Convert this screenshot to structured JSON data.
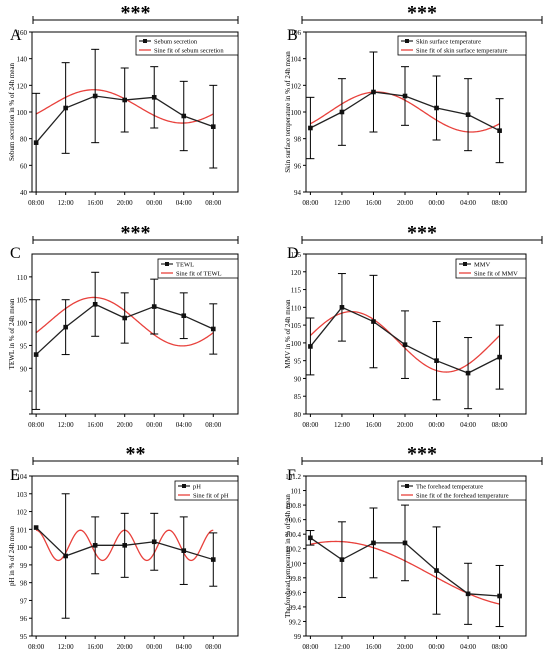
{
  "chart_data": [
    {
      "panel": "A",
      "type": "line",
      "significance": "***",
      "ylabel": "Sebum secretion in % of 24h mean",
      "x_ticks": [
        "08:00",
        "12:00",
        "16:00",
        "20:00",
        "00:00",
        "04:00",
        "08:00"
      ],
      "ylim": [
        40,
        160
      ],
      "y_ticks": [
        40,
        60,
        80,
        100,
        120,
        140,
        160
      ],
      "legend": [
        "Sebum secretion",
        "Sine fit of sebum secretion"
      ],
      "legend_position": "top-right",
      "series": [
        {
          "name": "Sebum secretion",
          "x": [
            0,
            1,
            2,
            3,
            4,
            5,
            6
          ],
          "values": [
            77,
            103,
            112,
            109,
            111,
            97,
            89
          ],
          "error": [
            37,
            34,
            35,
            24,
            23,
            26,
            31
          ]
        },
        {
          "name": "Sine fit of sebum secretion",
          "mesor": 104.2,
          "amplitude": 12.5,
          "acrophase": 1.95,
          "period": 6
        }
      ]
    },
    {
      "panel": "B",
      "type": "line",
      "significance": "***",
      "ylabel": "Skin surface temperature in % of 24h mean",
      "x_ticks": [
        "08:00",
        "12:00",
        "16:00",
        "20:00",
        "00:00",
        "04:00",
        "08:00"
      ],
      "ylim": [
        94,
        106
      ],
      "y_ticks": [
        94,
        96,
        98,
        100,
        102,
        104,
        106
      ],
      "legend": [
        "Skin surface temperature",
        "Sine fit of skin surface temperature"
      ],
      "legend_position": "top-right",
      "series": [
        {
          "name": "Skin surface temperature",
          "x": [
            0,
            1,
            2,
            3,
            4,
            5,
            6
          ],
          "values": [
            98.8,
            100,
            101.5,
            101.2,
            100.3,
            99.8,
            98.6
          ],
          "error": [
            2.3,
            2.5,
            3.0,
            2.2,
            2.4,
            2.7,
            2.4
          ]
        },
        {
          "name": "Sine fit of skin surface temperature",
          "mesor": 100.0,
          "amplitude": 1.5,
          "acrophase": 2.1,
          "period": 6
        }
      ]
    },
    {
      "panel": "C",
      "type": "line",
      "significance": "***",
      "ylabel": "TEWL in % of 24h mean",
      "x_ticks": [
        "08:00",
        "12:00",
        "16:00",
        "20:00",
        "00:00",
        "04:00",
        "08:00"
      ],
      "ylim": [
        80,
        115
      ],
      "y_ticks": [
        80,
        85,
        90,
        95,
        100,
        105,
        110
      ],
      "y_tick_labels": [
        "",
        "",
        "90",
        "95",
        "100",
        "105",
        "110"
      ],
      "legend": [
        "TEWL",
        "Sine fit of TEWL"
      ],
      "legend_position": "top-right",
      "series": [
        {
          "name": "TEWL",
          "x": [
            0,
            1,
            2,
            3,
            4,
            5,
            6
          ],
          "values": [
            93,
            99,
            104,
            101,
            103.5,
            101.5,
            98.6
          ],
          "error": [
            12,
            6,
            7,
            5.5,
            6,
            5,
            5.5
          ]
        },
        {
          "name": "Sine fit of TEWL",
          "mesor": 100.2,
          "amplitude": 5.3,
          "acrophase": 1.95,
          "period": 6
        }
      ]
    },
    {
      "panel": "D",
      "type": "line",
      "significance": "***",
      "ylabel": "MMV in % of 24h mean",
      "x_ticks": [
        "08:00",
        "12:00",
        "16:00",
        "20:00",
        "00:00",
        "04:00",
        "08:00"
      ],
      "ylim": [
        80,
        125
      ],
      "y_ticks": [
        80,
        85,
        90,
        95,
        100,
        105,
        110,
        115,
        120,
        125
      ],
      "legend": [
        "MMV",
        "Sine fit of MMV"
      ],
      "legend_position": "top-right",
      "series": [
        {
          "name": "MMV",
          "x": [
            0,
            1,
            2,
            3,
            4,
            5,
            6
          ],
          "values": [
            99,
            110,
            106,
            99.5,
            95,
            91.5,
            96
          ],
          "error": [
            8,
            9.5,
            13,
            9.5,
            11,
            10,
            9
          ]
        },
        {
          "name": "Sine fit of MMV",
          "mesor": 100.3,
          "amplitude": 8.5,
          "acrophase": 1.3,
          "period": 6
        }
      ]
    },
    {
      "panel": "E",
      "type": "line",
      "significance": "**",
      "ylabel": "pH in % of 24h mean",
      "x_ticks": [
        "08:00",
        "12:00",
        "16:00",
        "20:00",
        "00:00",
        "04:00",
        "08:00"
      ],
      "ylim": [
        95,
        104
      ],
      "y_ticks": [
        95,
        96,
        97,
        98,
        99,
        100,
        101,
        102,
        103,
        104
      ],
      "legend": [
        "pH",
        "Sine fit of pH"
      ],
      "legend_position": "top-right",
      "series": [
        {
          "name": "pH",
          "x": [
            0,
            1,
            2,
            3,
            4,
            5,
            6
          ],
          "values": [
            101.1,
            99.5,
            100.1,
            100.1,
            100.3,
            99.8,
            99.3
          ],
          "error": [
            0,
            3.5,
            1.6,
            1.8,
            1.6,
            1.9,
            1.5
          ]
        },
        {
          "name": "Sine fit of pH",
          "mesor": 100.1,
          "amplitude": 0.85,
          "acrophase": 0.0,
          "period": 1.5
        }
      ]
    },
    {
      "panel": "F",
      "type": "line",
      "significance": "***",
      "ylabel": "The forehead temperature in % of 24h mean",
      "x_ticks": [
        "08:00",
        "12:00",
        "16:00",
        "20:00",
        "00:00",
        "04:00",
        "08:00"
      ],
      "ylim": [
        99.0,
        101.2
      ],
      "y_ticks": [
        99.0,
        99.2,
        99.4,
        99.6,
        99.8,
        100.0,
        100.2,
        100.4,
        100.6,
        100.8,
        101.0,
        101.2
      ],
      "legend": [
        "The forehead temperature",
        "Sine fit of the forehead temperature"
      ],
      "legend_position": "top-right",
      "series": [
        {
          "name": "The forehead temperature",
          "x": [
            0,
            1,
            2,
            3,
            4,
            5,
            6
          ],
          "values": [
            100.35,
            100.05,
            100.28,
            100.28,
            99.9,
            99.58,
            99.55
          ],
          "error": [
            0.1,
            0.52,
            0.48,
            0.52,
            0.6,
            0.42,
            0.42
          ]
        },
        {
          "name": "Sine fit of the forehead temperature",
          "mesor": 99.85,
          "amplitude": 0.45,
          "acrophase": 0.8,
          "period": 12
        }
      ]
    }
  ]
}
